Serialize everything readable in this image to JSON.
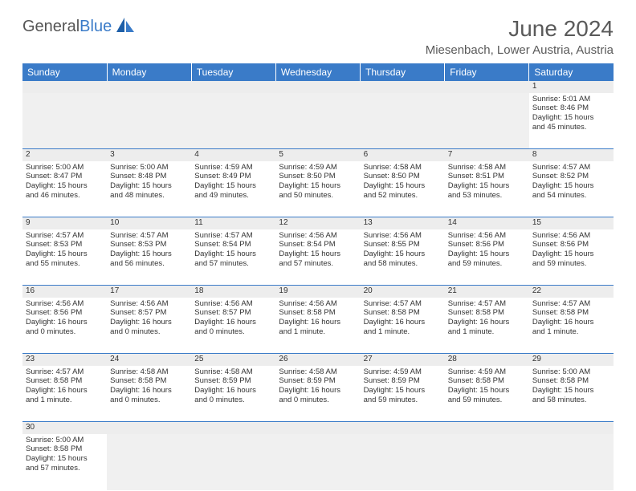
{
  "brand": {
    "part1": "General",
    "part2": "Blue"
  },
  "title": "June 2024",
  "location": "Miesenbach, Lower Austria, Austria",
  "colors": {
    "header_bg": "#3a7bc8",
    "header_text": "#ffffff",
    "border": "#3a7bc8",
    "daynum_bg": "#ededed",
    "text": "#333333"
  },
  "weekdays": [
    "Sunday",
    "Monday",
    "Tuesday",
    "Wednesday",
    "Thursday",
    "Friday",
    "Saturday"
  ],
  "weeks": [
    [
      null,
      null,
      null,
      null,
      null,
      null,
      {
        "d": "1",
        "sr": "Sunrise: 5:01 AM",
        "ss": "Sunset: 8:46 PM",
        "dl1": "Daylight: 15 hours",
        "dl2": "and 45 minutes."
      }
    ],
    [
      {
        "d": "2",
        "sr": "Sunrise: 5:00 AM",
        "ss": "Sunset: 8:47 PM",
        "dl1": "Daylight: 15 hours",
        "dl2": "and 46 minutes."
      },
      {
        "d": "3",
        "sr": "Sunrise: 5:00 AM",
        "ss": "Sunset: 8:48 PM",
        "dl1": "Daylight: 15 hours",
        "dl2": "and 48 minutes."
      },
      {
        "d": "4",
        "sr": "Sunrise: 4:59 AM",
        "ss": "Sunset: 8:49 PM",
        "dl1": "Daylight: 15 hours",
        "dl2": "and 49 minutes."
      },
      {
        "d": "5",
        "sr": "Sunrise: 4:59 AM",
        "ss": "Sunset: 8:50 PM",
        "dl1": "Daylight: 15 hours",
        "dl2": "and 50 minutes."
      },
      {
        "d": "6",
        "sr": "Sunrise: 4:58 AM",
        "ss": "Sunset: 8:50 PM",
        "dl1": "Daylight: 15 hours",
        "dl2": "and 52 minutes."
      },
      {
        "d": "7",
        "sr": "Sunrise: 4:58 AM",
        "ss": "Sunset: 8:51 PM",
        "dl1": "Daylight: 15 hours",
        "dl2": "and 53 minutes."
      },
      {
        "d": "8",
        "sr": "Sunrise: 4:57 AM",
        "ss": "Sunset: 8:52 PM",
        "dl1": "Daylight: 15 hours",
        "dl2": "and 54 minutes."
      }
    ],
    [
      {
        "d": "9",
        "sr": "Sunrise: 4:57 AM",
        "ss": "Sunset: 8:53 PM",
        "dl1": "Daylight: 15 hours",
        "dl2": "and 55 minutes."
      },
      {
        "d": "10",
        "sr": "Sunrise: 4:57 AM",
        "ss": "Sunset: 8:53 PM",
        "dl1": "Daylight: 15 hours",
        "dl2": "and 56 minutes."
      },
      {
        "d": "11",
        "sr": "Sunrise: 4:57 AM",
        "ss": "Sunset: 8:54 PM",
        "dl1": "Daylight: 15 hours",
        "dl2": "and 57 minutes."
      },
      {
        "d": "12",
        "sr": "Sunrise: 4:56 AM",
        "ss": "Sunset: 8:54 PM",
        "dl1": "Daylight: 15 hours",
        "dl2": "and 57 minutes."
      },
      {
        "d": "13",
        "sr": "Sunrise: 4:56 AM",
        "ss": "Sunset: 8:55 PM",
        "dl1": "Daylight: 15 hours",
        "dl2": "and 58 minutes."
      },
      {
        "d": "14",
        "sr": "Sunrise: 4:56 AM",
        "ss": "Sunset: 8:56 PM",
        "dl1": "Daylight: 15 hours",
        "dl2": "and 59 minutes."
      },
      {
        "d": "15",
        "sr": "Sunrise: 4:56 AM",
        "ss": "Sunset: 8:56 PM",
        "dl1": "Daylight: 15 hours",
        "dl2": "and 59 minutes."
      }
    ],
    [
      {
        "d": "16",
        "sr": "Sunrise: 4:56 AM",
        "ss": "Sunset: 8:56 PM",
        "dl1": "Daylight: 16 hours",
        "dl2": "and 0 minutes."
      },
      {
        "d": "17",
        "sr": "Sunrise: 4:56 AM",
        "ss": "Sunset: 8:57 PM",
        "dl1": "Daylight: 16 hours",
        "dl2": "and 0 minutes."
      },
      {
        "d": "18",
        "sr": "Sunrise: 4:56 AM",
        "ss": "Sunset: 8:57 PM",
        "dl1": "Daylight: 16 hours",
        "dl2": "and 0 minutes."
      },
      {
        "d": "19",
        "sr": "Sunrise: 4:56 AM",
        "ss": "Sunset: 8:58 PM",
        "dl1": "Daylight: 16 hours",
        "dl2": "and 1 minute."
      },
      {
        "d": "20",
        "sr": "Sunrise: 4:57 AM",
        "ss": "Sunset: 8:58 PM",
        "dl1": "Daylight: 16 hours",
        "dl2": "and 1 minute."
      },
      {
        "d": "21",
        "sr": "Sunrise: 4:57 AM",
        "ss": "Sunset: 8:58 PM",
        "dl1": "Daylight: 16 hours",
        "dl2": "and 1 minute."
      },
      {
        "d": "22",
        "sr": "Sunrise: 4:57 AM",
        "ss": "Sunset: 8:58 PM",
        "dl1": "Daylight: 16 hours",
        "dl2": "and 1 minute."
      }
    ],
    [
      {
        "d": "23",
        "sr": "Sunrise: 4:57 AM",
        "ss": "Sunset: 8:58 PM",
        "dl1": "Daylight: 16 hours",
        "dl2": "and 1 minute."
      },
      {
        "d": "24",
        "sr": "Sunrise: 4:58 AM",
        "ss": "Sunset: 8:58 PM",
        "dl1": "Daylight: 16 hours",
        "dl2": "and 0 minutes."
      },
      {
        "d": "25",
        "sr": "Sunrise: 4:58 AM",
        "ss": "Sunset: 8:59 PM",
        "dl1": "Daylight: 16 hours",
        "dl2": "and 0 minutes."
      },
      {
        "d": "26",
        "sr": "Sunrise: 4:58 AM",
        "ss": "Sunset: 8:59 PM",
        "dl1": "Daylight: 16 hours",
        "dl2": "and 0 minutes."
      },
      {
        "d": "27",
        "sr": "Sunrise: 4:59 AM",
        "ss": "Sunset: 8:59 PM",
        "dl1": "Daylight: 15 hours",
        "dl2": "and 59 minutes."
      },
      {
        "d": "28",
        "sr": "Sunrise: 4:59 AM",
        "ss": "Sunset: 8:58 PM",
        "dl1": "Daylight: 15 hours",
        "dl2": "and 59 minutes."
      },
      {
        "d": "29",
        "sr": "Sunrise: 5:00 AM",
        "ss": "Sunset: 8:58 PM",
        "dl1": "Daylight: 15 hours",
        "dl2": "and 58 minutes."
      }
    ],
    [
      {
        "d": "30",
        "sr": "Sunrise: 5:00 AM",
        "ss": "Sunset: 8:58 PM",
        "dl1": "Daylight: 15 hours",
        "dl2": "and 57 minutes."
      },
      null,
      null,
      null,
      null,
      null,
      null
    ]
  ]
}
